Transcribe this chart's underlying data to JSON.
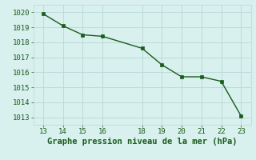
{
  "x": [
    13,
    14,
    15,
    16,
    18,
    19,
    20,
    21,
    22,
    23
  ],
  "y": [
    1019.9,
    1019.1,
    1018.5,
    1018.4,
    1017.6,
    1016.5,
    1015.7,
    1015.7,
    1015.4,
    1013.1
  ],
  "line_color": "#1a5c1a",
  "marker": "s",
  "marker_size": 2.5,
  "xlim": [
    12.5,
    23.5
  ],
  "ylim": [
    1012.5,
    1020.5
  ],
  "xticks": [
    13,
    14,
    15,
    16,
    18,
    19,
    20,
    21,
    22,
    23
  ],
  "yticks": [
    1013,
    1014,
    1015,
    1016,
    1017,
    1018,
    1019,
    1020
  ],
  "xlabel": "Graphe pression niveau de la mer (hPa)",
  "background_color": "#d8f0ee",
  "grid_color": "#b8d8d4",
  "tick_color": "#1a5c1a",
  "label_color": "#1a5c1a",
  "tick_fontsize": 6.5,
  "xlabel_fontsize": 7.5
}
